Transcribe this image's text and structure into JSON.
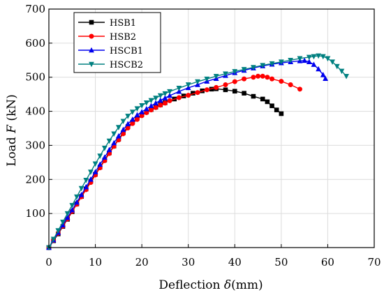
{
  "chart_data": {
    "type": "line",
    "xlabel": "Deflection δ(mm)",
    "xlabel_prefix": "Deflection ",
    "xlabel_symbol": "δ",
    "xlabel_unit": "(mm)",
    "ylabel": "Load F (kN)",
    "ylabel_prefix": "Load ",
    "ylabel_symbol": "F",
    "ylabel_unit": " (kN)",
    "xlim": [
      0,
      70
    ],
    "ylim": [
      0,
      700
    ],
    "xticks": [
      "0",
      "10",
      "20",
      "30",
      "40",
      "50",
      "60",
      "70"
    ],
    "yticks": [
      "100",
      "200",
      "300",
      "400",
      "500",
      "600",
      "700"
    ],
    "grid": true,
    "legend": "top-left",
    "series": [
      {
        "name": "HSB1",
        "color": "#000000",
        "marker": "square",
        "points": [
          [
            0,
            0
          ],
          [
            1,
            20
          ],
          [
            2,
            40
          ],
          [
            3,
            62
          ],
          [
            4,
            83
          ],
          [
            5,
            105
          ],
          [
            6,
            128
          ],
          [
            7,
            150
          ],
          [
            8,
            172
          ],
          [
            9,
            194
          ],
          [
            10,
            215
          ],
          [
            11,
            236
          ],
          [
            12,
            257
          ],
          [
            13,
            278
          ],
          [
            14,
            298
          ],
          [
            15,
            318
          ],
          [
            16,
            337
          ],
          [
            17,
            355
          ],
          [
            18,
            368
          ],
          [
            19,
            380
          ],
          [
            20,
            390
          ],
          [
            21,
            398
          ],
          [
            22,
            405
          ],
          [
            23,
            412
          ],
          [
            24,
            419
          ],
          [
            25,
            425
          ],
          [
            27,
            436
          ],
          [
            29,
            445
          ],
          [
            31,
            453
          ],
          [
            33,
            460
          ],
          [
            35,
            465
          ],
          [
            36,
            466
          ],
          [
            38,
            463
          ],
          [
            40,
            459
          ],
          [
            42,
            453
          ],
          [
            44,
            444
          ],
          [
            46,
            436
          ],
          [
            47,
            428
          ],
          [
            48,
            416
          ],
          [
            49,
            404
          ],
          [
            50,
            393
          ]
        ]
      },
      {
        "name": "HSB2",
        "color": "#ff0000",
        "marker": "circle",
        "points": [
          [
            0,
            0
          ],
          [
            1,
            21
          ],
          [
            2,
            42
          ],
          [
            3,
            63
          ],
          [
            4,
            84
          ],
          [
            5,
            106
          ],
          [
            6,
            127
          ],
          [
            7,
            149
          ],
          [
            8,
            170
          ],
          [
            9,
            191
          ],
          [
            10,
            213
          ],
          [
            11,
            234
          ],
          [
            12,
            255
          ],
          [
            13,
            276
          ],
          [
            14,
            297
          ],
          [
            15,
            316
          ],
          [
            16,
            334
          ],
          [
            17,
            351
          ],
          [
            18,
            364
          ],
          [
            19,
            376
          ],
          [
            20,
            387
          ],
          [
            21,
            396
          ],
          [
            22,
            404
          ],
          [
            23,
            411
          ],
          [
            24,
            418
          ],
          [
            25,
            424
          ],
          [
            26,
            431
          ],
          [
            28,
            440
          ],
          [
            30,
            447
          ],
          [
            32,
            455
          ],
          [
            34,
            463
          ],
          [
            36,
            470
          ],
          [
            38,
            478
          ],
          [
            40,
            487
          ],
          [
            42,
            495
          ],
          [
            44,
            500
          ],
          [
            45,
            503
          ],
          [
            46,
            503
          ],
          [
            47,
            500
          ],
          [
            48,
            495
          ],
          [
            50,
            488
          ],
          [
            52,
            478
          ],
          [
            54,
            465
          ]
        ]
      },
      {
        "name": "HSCB1",
        "color": "#0000ee",
        "marker": "triangle-up",
        "points": [
          [
            0,
            0
          ],
          [
            1,
            22
          ],
          [
            2,
            44
          ],
          [
            3,
            66
          ],
          [
            4,
            88
          ],
          [
            5,
            110
          ],
          [
            6,
            133
          ],
          [
            7,
            155
          ],
          [
            8,
            178
          ],
          [
            9,
            200
          ],
          [
            10,
            222
          ],
          [
            11,
            244
          ],
          [
            12,
            265
          ],
          [
            13,
            287
          ],
          [
            14,
            307
          ],
          [
            15,
            327
          ],
          [
            16,
            346
          ],
          [
            17,
            363
          ],
          [
            18,
            376
          ],
          [
            19,
            389
          ],
          [
            20,
            398
          ],
          [
            21,
            407
          ],
          [
            22,
            416
          ],
          [
            23,
            424
          ],
          [
            24,
            432
          ],
          [
            25,
            439
          ],
          [
            26,
            446
          ],
          [
            28,
            458
          ],
          [
            30,
            469
          ],
          [
            32,
            478
          ],
          [
            34,
            488
          ],
          [
            36,
            496
          ],
          [
            38,
            505
          ],
          [
            40,
            513
          ],
          [
            42,
            520
          ],
          [
            44,
            527
          ],
          [
            46,
            533
          ],
          [
            48,
            538
          ],
          [
            50,
            542
          ],
          [
            52,
            545
          ],
          [
            54,
            548
          ],
          [
            55,
            549
          ],
          [
            56,
            545
          ],
          [
            57,
            537
          ],
          [
            58,
            524
          ],
          [
            59,
            507
          ],
          [
            59.5,
            496
          ]
        ]
      },
      {
        "name": "HSCB2",
        "color": "#008080",
        "marker": "triangle-down",
        "points": [
          [
            0,
            0
          ],
          [
            1,
            25
          ],
          [
            2,
            50
          ],
          [
            3,
            75
          ],
          [
            4,
            100
          ],
          [
            5,
            124
          ],
          [
            6,
            149
          ],
          [
            7,
            174
          ],
          [
            8,
            198
          ],
          [
            9,
            222
          ],
          [
            10,
            246
          ],
          [
            11,
            269
          ],
          [
            12,
            292
          ],
          [
            13,
            313
          ],
          [
            14,
            334
          ],
          [
            15,
            353
          ],
          [
            16,
            371
          ],
          [
            17,
            386
          ],
          [
            18,
            398
          ],
          [
            19,
            408
          ],
          [
            20,
            417
          ],
          [
            21,
            425
          ],
          [
            22,
            432
          ],
          [
            23,
            439
          ],
          [
            24,
            446
          ],
          [
            25,
            452
          ],
          [
            26,
            458
          ],
          [
            28,
            468
          ],
          [
            30,
            478
          ],
          [
            32,
            487
          ],
          [
            34,
            495
          ],
          [
            36,
            503
          ],
          [
            38,
            510
          ],
          [
            40,
            517
          ],
          [
            42,
            523
          ],
          [
            44,
            529
          ],
          [
            46,
            535
          ],
          [
            48,
            540
          ],
          [
            50,
            545
          ],
          [
            52,
            550
          ],
          [
            54,
            555
          ],
          [
            56,
            559
          ],
          [
            57,
            561
          ],
          [
            58,
            563
          ],
          [
            59,
            561
          ],
          [
            60,
            555
          ],
          [
            61,
            545
          ],
          [
            62,
            532
          ],
          [
            63,
            518
          ],
          [
            64,
            503
          ]
        ]
      }
    ]
  }
}
